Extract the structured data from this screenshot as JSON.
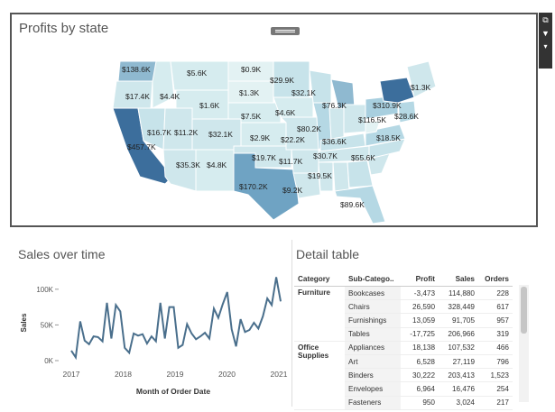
{
  "map_panel": {
    "title": "Profits by state",
    "labels": [
      "$138.6K",
      "$5.6K",
      "$0.9K",
      "$29.9K",
      "$17.4K",
      "$4.4K",
      "$1.3K",
      "$32.1K",
      "$1.6K",
      "$7.5K",
      "$76.3K",
      "$310.9K",
      "$1.3K",
      "$28.6K",
      "$4.6K",
      "$116.5K",
      "$16.7K",
      "$11.2K",
      "$32.1K",
      "$80.2K",
      "$2.9K",
      "$22.2K",
      "$36.6K",
      "$18.5K",
      "$457.7K",
      "$30.7K",
      "$55.6K",
      "$19.7K",
      "$11.7K",
      "$35.3K",
      "$4.8K",
      "$19.5K",
      "$170.2K",
      "$9.2K",
      "$89.6K"
    ],
    "tools": [
      "external-link-icon",
      "filter-icon",
      "dropdown-arrow-icon"
    ]
  },
  "colors": {
    "border": "#555555",
    "line": "#4a6f8c",
    "map_dark": "#3c6e9c",
    "map_light": "#d4ebef"
  },
  "sales_chart": {
    "title": "Sales over time",
    "xlabel": "Month of Order Date",
    "ylabel": "Sales",
    "yticks": [
      "100K",
      "50K",
      "0K"
    ],
    "xticks": [
      "2017",
      "2018",
      "2019",
      "2020",
      "2021"
    ]
  },
  "chart_data": {
    "type": "line",
    "title": "Sales over time",
    "xlabel": "Month of Order Date",
    "ylabel": "Sales",
    "ylim": [
      0,
      120000
    ],
    "x": [
      "2017-01",
      "2017-02",
      "2017-03",
      "2017-04",
      "2017-05",
      "2017-06",
      "2017-07",
      "2017-08",
      "2017-09",
      "2017-10",
      "2017-11",
      "2017-12",
      "2018-01",
      "2018-02",
      "2018-03",
      "2018-04",
      "2018-05",
      "2018-06",
      "2018-07",
      "2018-08",
      "2018-09",
      "2018-10",
      "2018-11",
      "2018-12",
      "2019-01",
      "2019-02",
      "2019-03",
      "2019-04",
      "2019-05",
      "2019-06",
      "2019-07",
      "2019-08",
      "2019-09",
      "2019-10",
      "2019-11",
      "2019-12",
      "2020-01",
      "2020-02",
      "2020-03",
      "2020-04",
      "2020-05",
      "2020-06",
      "2020-07",
      "2020-08",
      "2020-09",
      "2020-10",
      "2020-11",
      "2020-12"
    ],
    "values": [
      14000,
      4500,
      55000,
      28000,
      23000,
      34000,
      33000,
      27000,
      81000,
      31000,
      78000,
      69000,
      18000,
      11000,
      38000,
      35000,
      37000,
      24000,
      34000,
      27000,
      81000,
      31000,
      75000,
      75000,
      18000,
      22000,
      51000,
      38000,
      30000,
      34000,
      39000,
      31000,
      73000,
      60000,
      79000,
      96000,
      44000,
      20000,
      58000,
      40000,
      43000,
      53000,
      45000,
      62000,
      87000,
      78000,
      117000,
      83000
    ],
    "grid": false
  },
  "detail_table": {
    "title": "Detail table",
    "headers": [
      "Category",
      "Sub-Catego..",
      "Profit",
      "Sales",
      "Orders"
    ],
    "rows": [
      {
        "category": "Furniture",
        "sub": "Bookcases",
        "profit": "-3,473",
        "sales": "114,880",
        "orders": "228"
      },
      {
        "category": "",
        "sub": "Chairs",
        "profit": "26,590",
        "sales": "328,449",
        "orders": "617"
      },
      {
        "category": "",
        "sub": "Furnishings",
        "profit": "13,059",
        "sales": "91,705",
        "orders": "957"
      },
      {
        "category": "",
        "sub": "Tables",
        "profit": "-17,725",
        "sales": "206,966",
        "orders": "319"
      },
      {
        "category": "Office Supplies",
        "sub": "Appliances",
        "profit": "18,138",
        "sales": "107,532",
        "orders": "466"
      },
      {
        "category": "",
        "sub": "Art",
        "profit": "6,528",
        "sales": "27,119",
        "orders": "796"
      },
      {
        "category": "",
        "sub": "Binders",
        "profit": "30,222",
        "sales": "203,413",
        "orders": "1,523"
      },
      {
        "category": "",
        "sub": "Envelopes",
        "profit": "6,964",
        "sales": "16,476",
        "orders": "254"
      },
      {
        "category": "",
        "sub": "Fasteners",
        "profit": "950",
        "sales": "3,024",
        "orders": "217"
      }
    ]
  }
}
